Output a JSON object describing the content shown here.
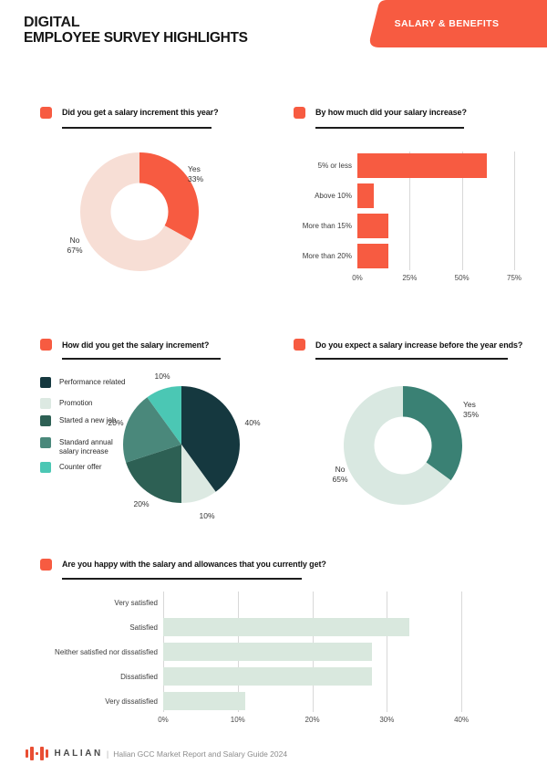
{
  "page": {
    "kicker": "DIGITAL",
    "title": "EMPLOYEE SURVEY HIGHLIGHTS",
    "badge": "SALARY & BENEFITS",
    "colors": {
      "accent_orange": "#F75B41",
      "light_pink": "#F7DED5",
      "dark_teal": "#15383F",
      "light_mint": "#DCE9E2",
      "dark_green": "#2D6054",
      "medium_teal": "#4A887B",
      "bright_teal": "#4BC7B4",
      "teal": "#3A8174"
    },
    "footer": {
      "brand": "HALIAN",
      "separator": "|",
      "caption": "Halian GCC Market Report and Salary Guide 2024"
    }
  },
  "chart_data": [
    {
      "type": "donut",
      "title": "Did you get a salary increment this year?",
      "start": "top",
      "direction": "clockwise",
      "segments": [
        {
          "label": "Yes",
          "value": 33,
          "color": "#F75B41"
        },
        {
          "label": "No",
          "value": 67,
          "color": "#F7DED5"
        }
      ]
    },
    {
      "type": "bar",
      "orientation": "horizontal",
      "title": "By how much did your salary increase?",
      "categories": [
        "5% or less",
        "Above 10%",
        "More than 15%",
        "More than 20%"
      ],
      "values": [
        62,
        8,
        15,
        15
      ],
      "unit": "%",
      "bar_color": "#F75B41",
      "xlim": [
        0,
        75
      ],
      "xticks": [
        {
          "value": 0,
          "label": "0%"
        },
        {
          "value": 25,
          "label": "25%"
        },
        {
          "value": 50,
          "label": "50%"
        },
        {
          "value": 75,
          "label": "75%"
        }
      ],
      "gridlines": [
        25,
        50,
        75
      ]
    },
    {
      "type": "pie",
      "title": "How did you get the salary increment?",
      "legend_position": "left",
      "start": "top",
      "direction": "clockwise",
      "segments": [
        {
          "label": "Performance related",
          "value": 40,
          "color": "#15383F"
        },
        {
          "label": "Promotion",
          "value": 10,
          "color": "#DCE9E2"
        },
        {
          "label": "Started a new job",
          "value": 20,
          "color": "#2D6054"
        },
        {
          "label": "Standard annual salary increase",
          "value": 20,
          "color": "#4A887B"
        },
        {
          "label": "Counter offer",
          "value": 10,
          "color": "#4BC7B4"
        }
      ]
    },
    {
      "type": "donut",
      "title": "Do you expect a salary increase before the year ends?",
      "start": "top",
      "direction": "clockwise",
      "segments": [
        {
          "label": "Yes",
          "value": 35,
          "color": "#3A8174"
        },
        {
          "label": "No",
          "value": 65,
          "color": "#D9E8E1"
        }
      ]
    },
    {
      "type": "bar",
      "orientation": "horizontal",
      "title": "Are you happy with the salary and allowances that you currently get?",
      "categories": [
        "Very satisfied",
        "Satisfied",
        "Neither satisfied nor dissatisfied",
        "Dissatisfied",
        "Very dissatisfied"
      ],
      "values": [
        0,
        33,
        28,
        28,
        11
      ],
      "unit": "%",
      "bar_color": "#D9E8DE",
      "xlim": [
        0,
        45
      ],
      "xticks": [
        {
          "value": 0,
          "label": "0%"
        },
        {
          "value": 10,
          "label": "10%"
        },
        {
          "value": 20,
          "label": "20%"
        },
        {
          "value": 30,
          "label": "30%"
        },
        {
          "value": 40,
          "label": "40%"
        }
      ],
      "gridlines": [
        0,
        10,
        20,
        30,
        40
      ]
    }
  ]
}
